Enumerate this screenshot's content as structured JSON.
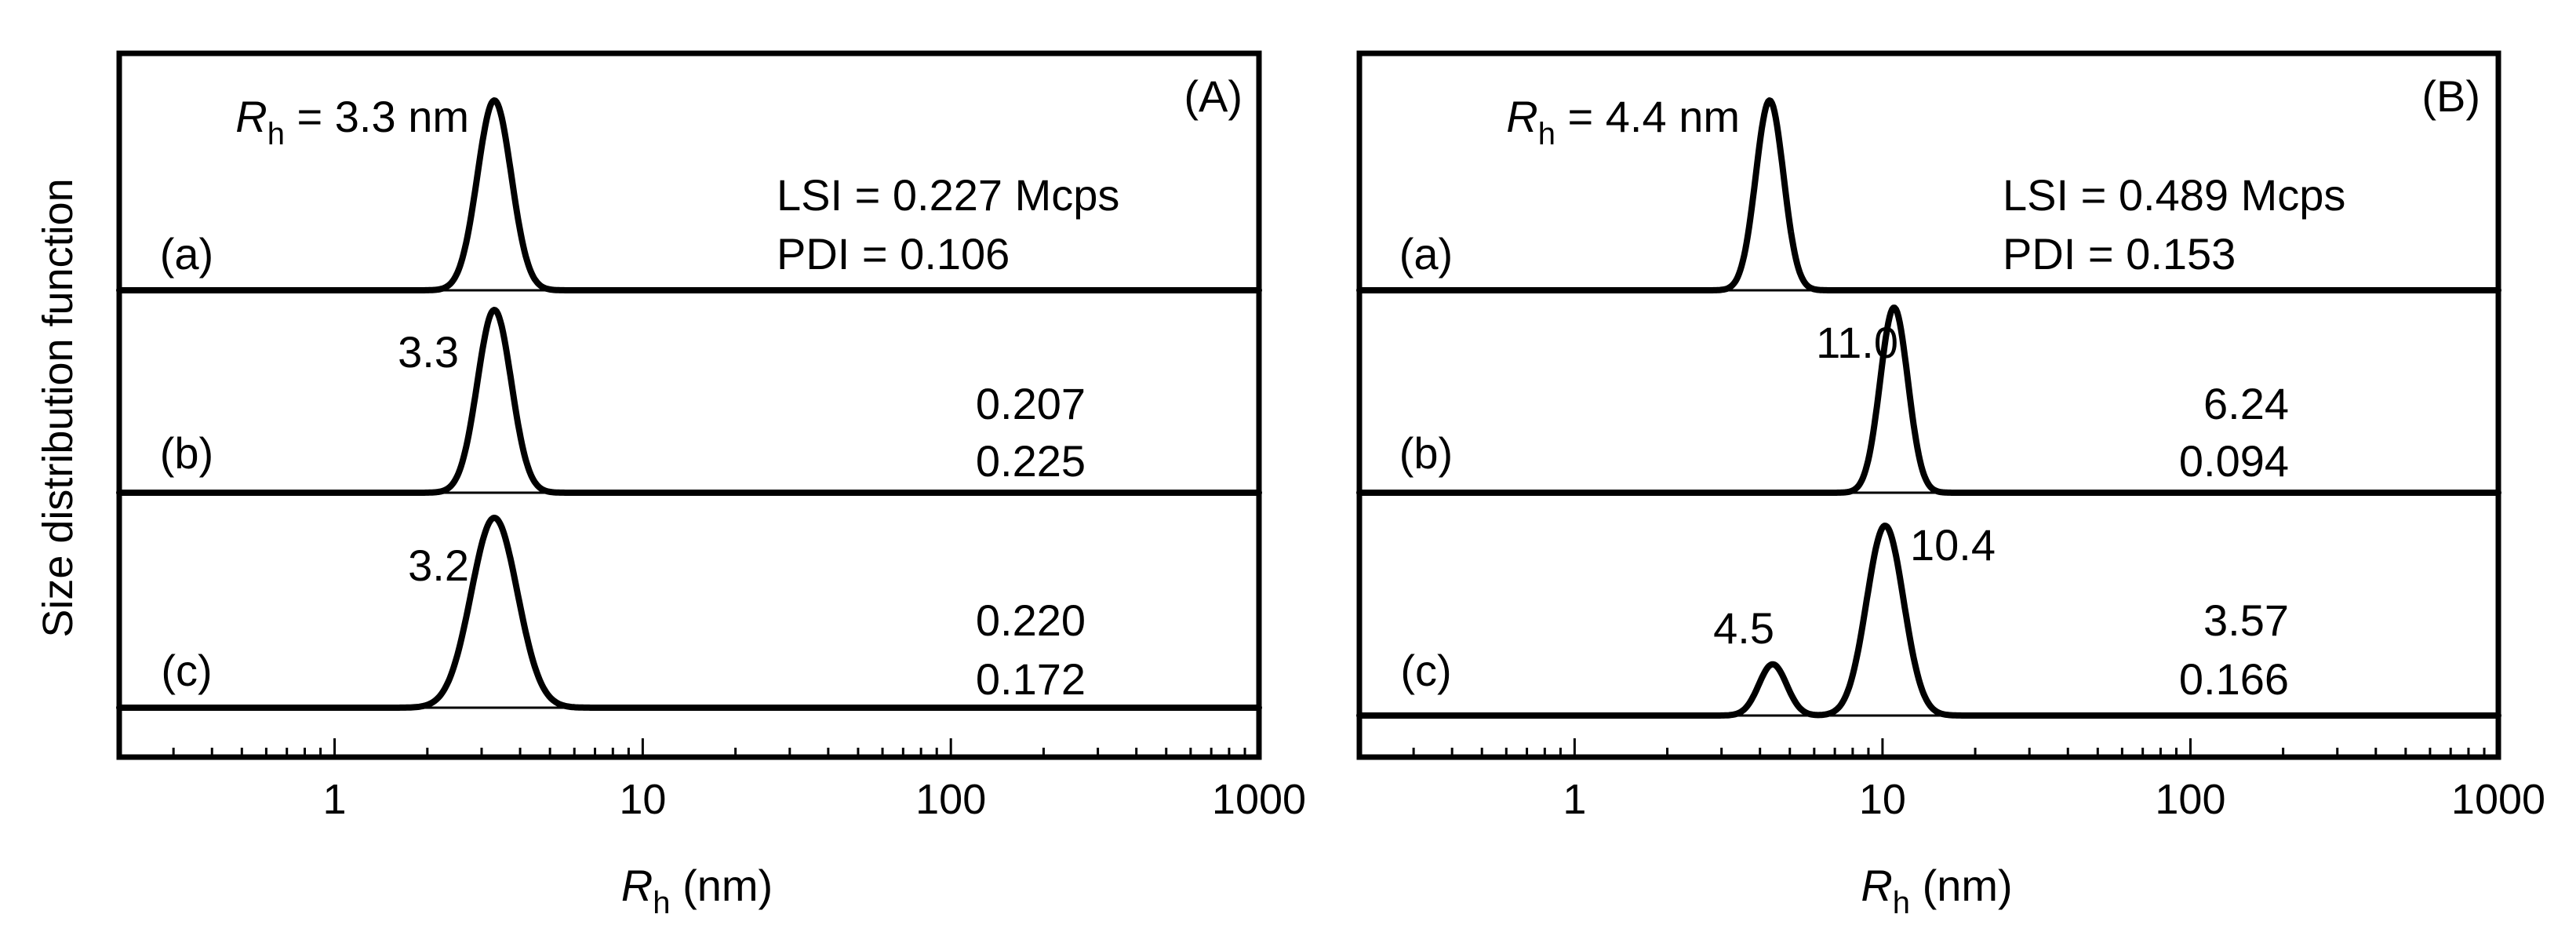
{
  "chart_data": [
    {
      "type": "line",
      "panel_label": "(A)",
      "ylabel": "Size distribution function",
      "xlabel": {
        "main": "R",
        "sub": "h",
        "unit": " (nm)"
      },
      "xscale": "log",
      "xlim": [
        0.2,
        1000
      ],
      "x_tick_labels": [
        "1",
        "10",
        "100",
        "1000"
      ],
      "rows": [
        {
          "label": "(a)",
          "peaks": [
            {
              "center": 3.3,
              "sigma": 0.055,
              "amp": 1.0,
              "label": "3.3",
              "label_prefix": {
                "main": "R",
                "sub": "h",
                "text": " = "
              },
              "label_suffix": " nm"
            }
          ],
          "lsi_text": "LSI = 0.227 Mcps",
          "pdi_text": "PDI = 0.106"
        },
        {
          "label": "(b)",
          "peaks": [
            {
              "center": 3.3,
              "sigma": 0.055,
              "amp": 1.0,
              "label": "3.3"
            }
          ],
          "lsi_text": "0.207",
          "pdi_text": "0.225"
        },
        {
          "label": "(c)",
          "peaks": [
            {
              "center": 3.3,
              "sigma": 0.075,
              "amp": 1.0,
              "label": "3.2"
            }
          ],
          "lsi_text": "0.220",
          "pdi_text": "0.172"
        }
      ]
    },
    {
      "type": "line",
      "panel_label": "(B)",
      "xlabel": {
        "main": "R",
        "sub": "h",
        "unit": " (nm)"
      },
      "xscale": "log",
      "xlim": [
        0.2,
        1000
      ],
      "x_tick_labels": [
        "1",
        "10",
        "100",
        "1000"
      ],
      "rows": [
        {
          "label": "(a)",
          "peaks": [
            {
              "center": 4.3,
              "sigma": 0.045,
              "amp": 1.0,
              "label": "4.4",
              "label_prefix": {
                "main": "R",
                "sub": "h",
                "text": " = "
              },
              "label_suffix": " nm"
            }
          ],
          "lsi_text": "LSI = 0.489 Mcps",
          "pdi_text": "PDI = 0.153"
        },
        {
          "label": "(b)",
          "peaks": [
            {
              "center": 10.9,
              "sigma": 0.045,
              "amp": 1.0,
              "label": "11.0"
            }
          ],
          "lsi_text": "6.24",
          "pdi_text": "0.094"
        },
        {
          "label": "(c)",
          "peaks": [
            {
              "center": 4.4,
              "sigma": 0.045,
              "amp": 0.27,
              "label": "4.5"
            },
            {
              "center": 10.2,
              "sigma": 0.06,
              "amp": 1.0,
              "label": "10.4"
            }
          ],
          "lsi_text": "3.57",
          "pdi_text": "0.166"
        }
      ]
    }
  ]
}
